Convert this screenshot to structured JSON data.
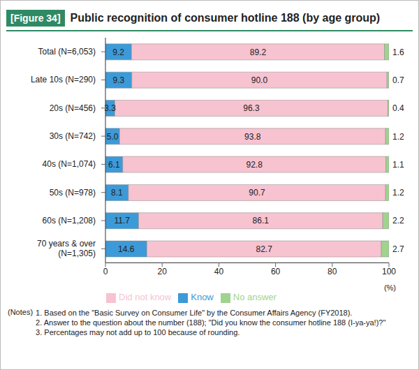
{
  "chart_data": {
    "type": "bar",
    "orientation": "horizontal",
    "stacked": true,
    "data_labels": true,
    "legend": "bottom",
    "grid": false,
    "figure_label": "[Figure 34]",
    "title": "Public recognition of consumer hotline 188 (by age group)",
    "categories": [
      "Total (N=6,053)",
      "Late 10s (N=290)",
      "20s (N=456)",
      "30s (N=742)",
      "40s (N=1,074)",
      "50s (N=978)",
      "60s (N=1,208)",
      "70 years & over (N=1,305)"
    ],
    "series": [
      {
        "name": "Know",
        "color": "#3d9ad8",
        "values": [
          9.2,
          9.3,
          3.3,
          5,
          6.1,
          8.1,
          11.7,
          14.6
        ],
        "value_labels": [
          "9.2",
          "9.3",
          "3.3",
          "5.0",
          "6.1",
          "8.1",
          "11.7",
          "14.6"
        ]
      },
      {
        "name": "Did not know",
        "color": "#f7c3d0",
        "values": [
          89.2,
          90,
          96.3,
          93.8,
          92.8,
          90.7,
          86.1,
          82.7
        ],
        "value_labels": [
          "89.2",
          "90.0",
          "96.3",
          "93.8",
          "92.8",
          "90.7",
          "86.1",
          "82.7"
        ]
      },
      {
        "name": "No answer",
        "color": "#9fd38e",
        "values": [
          1.6,
          0.7,
          0.4,
          1.2,
          1.1,
          1.2,
          2.2,
          2.7
        ],
        "value_labels": [
          "1.6",
          "0.7",
          "0.4",
          "1.2",
          "1.1",
          "1.2",
          "2.2",
          "2.7"
        ]
      }
    ],
    "xlim": [
      0,
      100
    ],
    "xticks": [
      0,
      20,
      40,
      60,
      80,
      100
    ],
    "xlabel": "(%)",
    "notes_label": "(Notes)",
    "notes": [
      "1. Based on the \"Basic Survey on Consumer Life\" by the Consumer Affairs Agency (FY2018).",
      "2. Answer to the question about the number (188); \"Did you know the consumer hotline 188 (I-ya-ya!)?\"",
      "3. Percentages may not add up to 100 because of rounding."
    ]
  }
}
